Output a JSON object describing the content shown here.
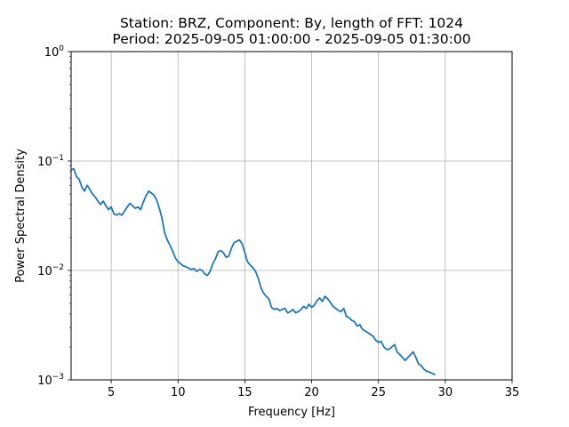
{
  "chart_data": {
    "type": "line",
    "title_line1": "Station: BRZ, Component: By, length of FFT: 1024",
    "title_line2": "Period: 2025-09-05 01:00:00 - 2025-09-05 01:30:00",
    "xlabel": "Frequency [Hz]",
    "ylabel": "Power Spectral Density",
    "xlim": [
      2,
      35
    ],
    "ylim": [
      0.001,
      1
    ],
    "yscale": "log",
    "grid": true,
    "x_ticks": [
      5,
      10,
      15,
      20,
      25,
      30,
      35
    ],
    "x_tick_labels": [
      "5",
      "10",
      "15",
      "20",
      "25",
      "30",
      "35"
    ],
    "y_ticks": [
      0.001,
      0.01,
      0.1,
      1
    ],
    "y_tick_labels": [
      {
        "base": "10",
        "exp": "−3"
      },
      {
        "base": "10",
        "exp": "−2"
      },
      {
        "base": "10",
        "exp": "−1"
      },
      {
        "base": "10",
        "exp": "0"
      }
    ],
    "line_color": "#1f77b4",
    "series": [
      {
        "x": [
          2.0,
          2.2,
          2.4,
          2.6,
          2.8,
          3.0,
          3.2,
          3.4,
          3.6,
          3.8,
          4.0,
          4.2,
          4.4,
          4.6,
          4.8,
          5.0,
          5.2,
          5.4,
          5.6,
          5.8,
          6.0,
          6.2,
          6.4,
          6.6,
          6.8,
          7.0,
          7.2,
          7.4,
          7.6,
          7.8,
          8.0,
          8.2,
          8.4,
          8.6,
          8.8,
          9.0,
          9.2,
          9.4,
          9.6,
          9.8,
          10.0,
          10.2,
          10.4,
          10.6,
          10.8,
          11.0,
          11.2,
          11.4,
          11.6,
          11.8,
          12.0,
          12.2,
          12.4,
          12.6,
          12.8,
          13.0,
          13.2,
          13.4,
          13.6,
          13.8,
          14.0,
          14.2,
          14.4,
          14.6,
          14.8,
          15.0,
          15.2,
          15.4,
          15.6,
          15.8,
          16.0,
          16.2,
          16.4,
          16.6,
          16.8,
          17.0,
          17.2,
          17.4,
          17.6,
          17.8,
          18.0,
          18.2,
          18.4,
          18.6,
          18.8,
          19.0,
          19.2,
          19.4,
          19.6,
          19.8,
          20.0,
          20.2,
          20.4,
          20.6,
          20.8,
          21.0,
          21.2,
          21.4,
          21.6,
          21.8,
          22.0,
          22.2,
          22.4,
          22.6,
          22.8,
          23.0,
          23.2,
          23.4,
          23.6,
          23.8,
          24.0,
          24.2,
          24.4,
          24.6,
          24.8,
          25.0,
          25.2,
          25.4,
          25.6,
          25.8,
          26.0,
          26.2,
          26.4,
          26.6,
          26.8,
          27.0,
          27.2,
          27.4,
          27.6,
          27.8,
          28.0,
          28.2,
          28.4,
          28.6,
          28.8,
          29.0,
          29.2
        ],
        "y": [
          0.083,
          0.085,
          0.072,
          0.068,
          0.058,
          0.053,
          0.06,
          0.055,
          0.05,
          0.047,
          0.043,
          0.04,
          0.043,
          0.039,
          0.036,
          0.038,
          0.033,
          0.032,
          0.033,
          0.032,
          0.035,
          0.038,
          0.041,
          0.039,
          0.037,
          0.038,
          0.036,
          0.042,
          0.048,
          0.053,
          0.051,
          0.049,
          0.044,
          0.037,
          0.03,
          0.022,
          0.019,
          0.017,
          0.015,
          0.013,
          0.012,
          0.0115,
          0.011,
          0.0108,
          0.0105,
          0.0102,
          0.0104,
          0.0098,
          0.0102,
          0.01,
          0.0093,
          0.009,
          0.0098,
          0.0115,
          0.0128,
          0.0148,
          0.0152,
          0.0145,
          0.0132,
          0.0135,
          0.016,
          0.018,
          0.0185,
          0.019,
          0.0175,
          0.0145,
          0.012,
          0.0112,
          0.0106,
          0.0098,
          0.0085,
          0.007,
          0.0062,
          0.0058,
          0.0055,
          0.0046,
          0.0044,
          0.0045,
          0.0043,
          0.0044,
          0.0045,
          0.0041,
          0.0042,
          0.0044,
          0.0041,
          0.0042,
          0.0044,
          0.0047,
          0.0045,
          0.0049,
          0.0046,
          0.0048,
          0.0053,
          0.0056,
          0.0052,
          0.0058,
          0.0055,
          0.0051,
          0.0047,
          0.0045,
          0.0043,
          0.0042,
          0.0045,
          0.0038,
          0.0037,
          0.0035,
          0.0034,
          0.0031,
          0.0032,
          0.0029,
          0.0028,
          0.0027,
          0.0026,
          0.0025,
          0.0023,
          0.0022,
          0.00225,
          0.002,
          0.0019,
          0.0019,
          0.002,
          0.0021,
          0.0018,
          0.0017,
          0.0016,
          0.0015,
          0.0016,
          0.0017,
          0.0018,
          0.0016,
          0.0014,
          0.00135,
          0.00125,
          0.0012,
          0.00118,
          0.00115,
          0.00112
        ]
      }
    ]
  }
}
